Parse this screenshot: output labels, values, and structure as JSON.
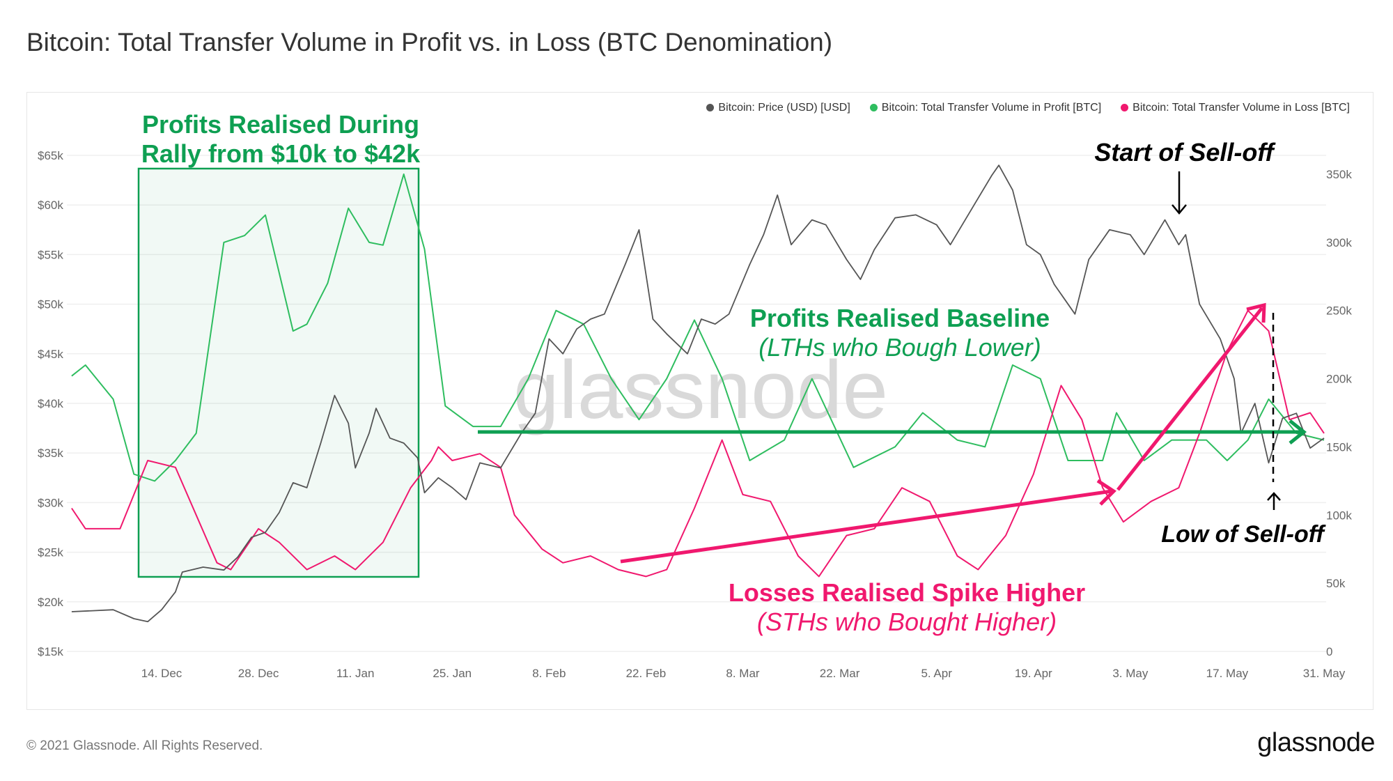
{
  "title": "Bitcoin: Total Transfer Volume in Profit vs. in Loss (BTC Denomination)",
  "footer": "© 2021 Glassnode. All Rights Reserved.",
  "logo": "glassnode",
  "watermark": "glassnode",
  "colors": {
    "price": "#555555",
    "profit": "#2ebd5f",
    "loss": "#f0186e",
    "annotation_green": "#0e9f52",
    "annotation_pink": "#f0186e"
  },
  "annotations": {
    "rally_line1": "Profits Realised During",
    "rally_line2": "Rally from $10k to $42k",
    "start_selloff": "Start of Sell-off",
    "baseline_line1": "Profits Realised Baseline",
    "baseline_line2": "(LTHs who Bough Lower)",
    "losses_line1": "Losses Realised Spike Higher",
    "losses_line2": "(STHs who Bought Higher)",
    "low_selloff": "Low of Sell-off"
  },
  "chart_data": {
    "type": "line",
    "title": "Bitcoin: Total Transfer Volume in Profit vs. in Loss (BTC Denomination)",
    "legend_position": "top-right",
    "grid": true,
    "x_ticks": [
      "14. Dec",
      "28. Dec",
      "11. Jan",
      "25. Jan",
      "8. Feb",
      "22. Feb",
      "8. Mar",
      "22. Mar",
      "5. Apr",
      "19. Apr",
      "3. May",
      "17. May",
      "31. May"
    ],
    "x_tick_dates": [
      "2020-12-14",
      "2020-12-28",
      "2021-01-11",
      "2021-01-25",
      "2021-02-08",
      "2021-02-22",
      "2021-03-08",
      "2021-03-22",
      "2021-04-05",
      "2021-04-19",
      "2021-05-03",
      "2021-05-17",
      "2021-05-31"
    ],
    "y_left": {
      "label": "",
      "ticks": [
        "$15k",
        "$20k",
        "$25k",
        "$30k",
        "$35k",
        "$40k",
        "$45k",
        "$50k",
        "$55k",
        "$60k",
        "$65k"
      ],
      "range": [
        15000,
        65000
      ]
    },
    "y_right": {
      "label": "",
      "ticks": [
        "0",
        "50k",
        "100k",
        "150k",
        "200k",
        "250k",
        "300k",
        "350k"
      ],
      "range": [
        0,
        350000
      ]
    },
    "series": [
      {
        "name": "Bitcoin: Price (USD) [USD]",
        "axis": "left",
        "points": [
          [
            "2020-12-01",
            19000
          ],
          [
            "2020-12-04",
            19100
          ],
          [
            "2020-12-07",
            19200
          ],
          [
            "2020-12-10",
            18300
          ],
          [
            "2020-12-12",
            18000
          ],
          [
            "2020-12-14",
            19200
          ],
          [
            "2020-12-16",
            21000
          ],
          [
            "2020-12-17",
            23000
          ],
          [
            "2020-12-20",
            23500
          ],
          [
            "2020-12-23",
            23200
          ],
          [
            "2020-12-25",
            24500
          ],
          [
            "2020-12-27",
            26500
          ],
          [
            "2020-12-29",
            27000
          ],
          [
            "2020-12-31",
            29000
          ],
          [
            "2021-01-02",
            32000
          ],
          [
            "2021-01-04",
            31500
          ],
          [
            "2021-01-06",
            36000
          ],
          [
            "2021-01-08",
            40800
          ],
          [
            "2021-01-10",
            38000
          ],
          [
            "2021-01-11",
            33500
          ],
          [
            "2021-01-13",
            37000
          ],
          [
            "2021-01-14",
            39500
          ],
          [
            "2021-01-16",
            36500
          ],
          [
            "2021-01-18",
            36000
          ],
          [
            "2021-01-20",
            34500
          ],
          [
            "2021-01-21",
            31000
          ],
          [
            "2021-01-23",
            32500
          ],
          [
            "2021-01-25",
            31500
          ],
          [
            "2021-01-27",
            30300
          ],
          [
            "2021-01-29",
            34000
          ],
          [
            "2021-02-01",
            33500
          ],
          [
            "2021-02-04",
            37000
          ],
          [
            "2021-02-06",
            39000
          ],
          [
            "2021-02-08",
            46500
          ],
          [
            "2021-02-10",
            45000
          ],
          [
            "2021-02-12",
            47500
          ],
          [
            "2021-02-14",
            48500
          ],
          [
            "2021-02-16",
            49000
          ],
          [
            "2021-02-19",
            54000
          ],
          [
            "2021-02-21",
            57500
          ],
          [
            "2021-02-23",
            48500
          ],
          [
            "2021-02-25",
            47000
          ],
          [
            "2021-02-28",
            45000
          ],
          [
            "2021-03-02",
            48500
          ],
          [
            "2021-03-04",
            48000
          ],
          [
            "2021-03-06",
            49000
          ],
          [
            "2021-03-09",
            54000
          ],
          [
            "2021-03-11",
            57000
          ],
          [
            "2021-03-13",
            61000
          ],
          [
            "2021-03-15",
            56000
          ],
          [
            "2021-03-18",
            58500
          ],
          [
            "2021-03-20",
            58000
          ],
          [
            "2021-03-23",
            54500
          ],
          [
            "2021-03-25",
            52500
          ],
          [
            "2021-03-27",
            55500
          ],
          [
            "2021-03-30",
            58700
          ],
          [
            "2021-04-02",
            59000
          ],
          [
            "2021-04-05",
            58000
          ],
          [
            "2021-04-07",
            56000
          ],
          [
            "2021-04-10",
            59500
          ],
          [
            "2021-04-13",
            63000
          ],
          [
            "2021-04-14",
            64000
          ],
          [
            "2021-04-16",
            61500
          ],
          [
            "2021-04-18",
            56000
          ],
          [
            "2021-04-20",
            55000
          ],
          [
            "2021-04-22",
            52000
          ],
          [
            "2021-04-25",
            49000
          ],
          [
            "2021-04-27",
            54500
          ],
          [
            "2021-04-30",
            57500
          ],
          [
            "2021-05-03",
            57000
          ],
          [
            "2021-05-05",
            55000
          ],
          [
            "2021-05-08",
            58500
          ],
          [
            "2021-05-10",
            56000
          ],
          [
            "2021-05-11",
            57000
          ],
          [
            "2021-05-13",
            50000
          ],
          [
            "2021-05-16",
            46500
          ],
          [
            "2021-05-18",
            42500
          ],
          [
            "2021-05-19",
            37000
          ],
          [
            "2021-05-21",
            40000
          ],
          [
            "2021-05-23",
            34000
          ],
          [
            "2021-05-25",
            38500
          ],
          [
            "2021-05-27",
            39000
          ],
          [
            "2021-05-29",
            35500
          ],
          [
            "2021-05-31",
            36500
          ]
        ]
      },
      {
        "name": "Bitcoin: Total Transfer Volume in Profit [BTC]",
        "axis": "right",
        "points": [
          [
            "2020-12-01",
            202000
          ],
          [
            "2020-12-03",
            210000
          ],
          [
            "2020-12-07",
            185000
          ],
          [
            "2020-12-10",
            130000
          ],
          [
            "2020-12-13",
            125000
          ],
          [
            "2020-12-16",
            140000
          ],
          [
            "2020-12-19",
            160000
          ],
          [
            "2020-12-23",
            300000
          ],
          [
            "2020-12-26",
            305000
          ],
          [
            "2020-12-29",
            320000
          ],
          [
            "2021-01-02",
            235000
          ],
          [
            "2021-01-04",
            240000
          ],
          [
            "2021-01-07",
            270000
          ],
          [
            "2021-01-10",
            325000
          ],
          [
            "2021-01-13",
            300000
          ],
          [
            "2021-01-15",
            298000
          ],
          [
            "2021-01-18",
            350000
          ],
          [
            "2021-01-21",
            295000
          ],
          [
            "2021-01-24",
            180000
          ],
          [
            "2021-01-28",
            165000
          ],
          [
            "2021-02-01",
            165000
          ],
          [
            "2021-02-05",
            200000
          ],
          [
            "2021-02-09",
            250000
          ],
          [
            "2021-02-13",
            240000
          ],
          [
            "2021-02-17",
            200000
          ],
          [
            "2021-02-21",
            170000
          ],
          [
            "2021-02-25",
            200000
          ],
          [
            "2021-03-01",
            243000
          ],
          [
            "2021-03-05",
            200000
          ],
          [
            "2021-03-09",
            140000
          ],
          [
            "2021-03-14",
            155000
          ],
          [
            "2021-03-18",
            200000
          ],
          [
            "2021-03-24",
            135000
          ],
          [
            "2021-03-30",
            150000
          ],
          [
            "2021-04-03",
            175000
          ],
          [
            "2021-04-08",
            155000
          ],
          [
            "2021-04-12",
            150000
          ],
          [
            "2021-04-16",
            210000
          ],
          [
            "2021-04-20",
            200000
          ],
          [
            "2021-04-24",
            140000
          ],
          [
            "2021-04-29",
            140000
          ],
          [
            "2021-05-01",
            175000
          ],
          [
            "2021-05-05",
            140000
          ],
          [
            "2021-05-09",
            155000
          ],
          [
            "2021-05-14",
            155000
          ],
          [
            "2021-05-17",
            140000
          ],
          [
            "2021-05-20",
            155000
          ],
          [
            "2021-05-23",
            185000
          ],
          [
            "2021-05-27",
            160000
          ],
          [
            "2021-05-31",
            155000
          ]
        ]
      },
      {
        "name": "Bitcoin: Total Transfer Volume in Loss [BTC]",
        "axis": "right",
        "points": [
          [
            "2020-12-01",
            105000
          ],
          [
            "2020-12-03",
            90000
          ],
          [
            "2020-12-08",
            90000
          ],
          [
            "2020-12-12",
            140000
          ],
          [
            "2020-12-16",
            135000
          ],
          [
            "2020-12-19",
            100000
          ],
          [
            "2020-12-22",
            65000
          ],
          [
            "2020-12-24",
            60000
          ],
          [
            "2020-12-28",
            90000
          ],
          [
            "2020-12-31",
            80000
          ],
          [
            "2021-01-04",
            60000
          ],
          [
            "2021-01-08",
            70000
          ],
          [
            "2021-01-11",
            60000
          ],
          [
            "2021-01-15",
            80000
          ],
          [
            "2021-01-19",
            120000
          ],
          [
            "2021-01-22",
            140000
          ],
          [
            "2021-01-23",
            150000
          ],
          [
            "2021-01-25",
            140000
          ],
          [
            "2021-01-29",
            145000
          ],
          [
            "2021-02-01",
            135000
          ],
          [
            "2021-02-03",
            100000
          ],
          [
            "2021-02-07",
            75000
          ],
          [
            "2021-02-10",
            65000
          ],
          [
            "2021-02-14",
            70000
          ],
          [
            "2021-02-18",
            60000
          ],
          [
            "2021-02-22",
            55000
          ],
          [
            "2021-02-25",
            60000
          ],
          [
            "2021-03-01",
            105000
          ],
          [
            "2021-03-05",
            155000
          ],
          [
            "2021-03-08",
            115000
          ],
          [
            "2021-03-12",
            110000
          ],
          [
            "2021-03-16",
            70000
          ],
          [
            "2021-03-19",
            55000
          ],
          [
            "2021-03-23",
            85000
          ],
          [
            "2021-03-27",
            90000
          ],
          [
            "2021-03-31",
            120000
          ],
          [
            "2021-04-04",
            110000
          ],
          [
            "2021-04-08",
            70000
          ],
          [
            "2021-04-11",
            60000
          ],
          [
            "2021-04-15",
            85000
          ],
          [
            "2021-04-19",
            130000
          ],
          [
            "2021-04-23",
            195000
          ],
          [
            "2021-04-26",
            170000
          ],
          [
            "2021-04-29",
            120000
          ],
          [
            "2021-05-02",
            95000
          ],
          [
            "2021-05-06",
            110000
          ],
          [
            "2021-05-10",
            120000
          ],
          [
            "2021-05-13",
            160000
          ],
          [
            "2021-05-17",
            220000
          ],
          [
            "2021-05-20",
            250000
          ],
          [
            "2021-05-23",
            235000
          ],
          [
            "2021-05-26",
            170000
          ],
          [
            "2021-05-29",
            175000
          ],
          [
            "2021-05-31",
            160000
          ]
        ]
      }
    ]
  }
}
